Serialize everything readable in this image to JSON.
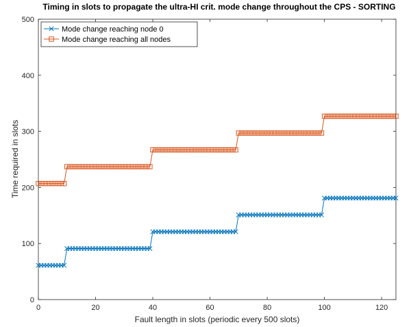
{
  "chart_data": {
    "type": "line",
    "title": "Timing in slots to propagate the ultra-HI crit. mode change throughout the CPS - SORTING",
    "xlabel": "Fault length in slots (periodic every 500 slots)",
    "ylabel": "Time required in slots",
    "xlim": [
      0,
      125
    ],
    "ylim": [
      0,
      500
    ],
    "xticks": [
      0,
      20,
      40,
      60,
      80,
      100,
      120
    ],
    "yticks": [
      0,
      100,
      200,
      300,
      400,
      500
    ],
    "grid": false,
    "legend_position": "top-left",
    "series": [
      {
        "name": "Mode change reaching node 0",
        "color": "#0072BD",
        "marker": "x",
        "steps": [
          {
            "x_from": 0,
            "x_to": 9,
            "y": 61
          },
          {
            "x_from": 10,
            "x_to": 39,
            "y": 91
          },
          {
            "x_from": 40,
            "x_to": 69,
            "y": 121
          },
          {
            "x_from": 70,
            "x_to": 99,
            "y": 151
          },
          {
            "x_from": 100,
            "x_to": 125,
            "y": 181
          }
        ]
      },
      {
        "name": "Mode change reaching all nodes",
        "color": "#D95319",
        "marker": "square",
        "steps": [
          {
            "x_from": 0,
            "x_to": 9,
            "y": 207
          },
          {
            "x_from": 10,
            "x_to": 39,
            "y": 237
          },
          {
            "x_from": 40,
            "x_to": 69,
            "y": 267
          },
          {
            "x_from": 70,
            "x_to": 99,
            "y": 297
          },
          {
            "x_from": 100,
            "x_to": 125,
            "y": 327
          }
        ]
      }
    ]
  }
}
